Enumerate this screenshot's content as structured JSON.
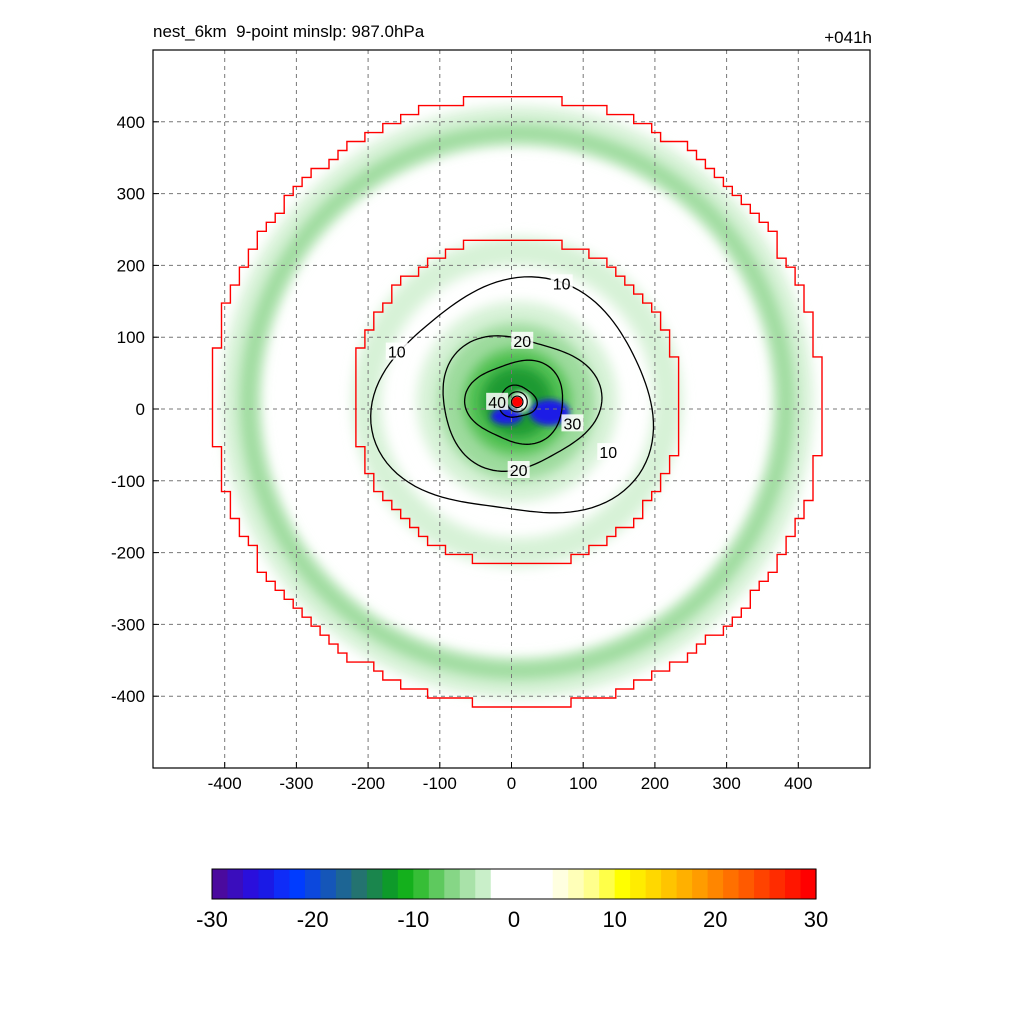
{
  "header": {
    "title_left": "nest_6km  9-point minslp: 987.0hPa",
    "title_right": "+041h"
  },
  "chart_data": {
    "type": "heatmap",
    "title": "nest_6km  9-point minslp: 987.0hPa",
    "valid_time": "+041h",
    "xlabel": "",
    "ylabel": "",
    "xlim": [
      -500,
      500
    ],
    "ylim": [
      -500,
      500
    ],
    "x_ticks": [
      -400,
      -300,
      -200,
      -100,
      0,
      100,
      200,
      300,
      400
    ],
    "y_ticks": [
      -400,
      -300,
      -200,
      -100,
      0,
      100,
      200,
      300,
      400
    ],
    "grid": true,
    "storm_center": [
      8,
      10
    ],
    "fill_colors": {
      "light_green": "#d7f2d7",
      "mid_green": "#9edb9e",
      "green": "#55c255",
      "dark_green": "#1a9a30",
      "blue": "#1a1ae6",
      "red_line": "#ff0000",
      "contour": "#000000",
      "center_marker": "#ff0000"
    },
    "shaded_rings": [
      {
        "radius": 385,
        "width": 55,
        "level": "light"
      },
      {
        "radius": 375,
        "width": 25,
        "level": "mid"
      },
      {
        "radius": 210,
        "width": 40,
        "level": "light"
      }
    ],
    "core_shading": [
      {
        "radius": 140,
        "level": "light"
      },
      {
        "radius": 110,
        "level": "mid"
      },
      {
        "radius": 75,
        "level": "green"
      },
      {
        "radius": 50,
        "level": "dark"
      }
    ],
    "red_boundaries": [
      {
        "name": "outer",
        "radius": 425
      },
      {
        "name": "inner",
        "radius": 230
      }
    ],
    "contours": [
      {
        "level": 10,
        "radius": 185,
        "label": "10"
      },
      {
        "level": 20,
        "radius": 105,
        "label": "20"
      },
      {
        "level": 30,
        "radius": 65,
        "label": "30"
      },
      {
        "level": 40,
        "radius": 25,
        "label": "40"
      }
    ],
    "contour_labels": [
      {
        "text": "10",
        "x": 70,
        "y": 175
      },
      {
        "text": "10",
        "x": -160,
        "y": 80
      },
      {
        "text": "10",
        "x": 135,
        "y": -60
      },
      {
        "text": "20",
        "x": 15,
        "y": 95
      },
      {
        "text": "20",
        "x": 10,
        "y": -85
      },
      {
        "text": "30",
        "x": 85,
        "y": -20
      },
      {
        "text": "40",
        "x": -20,
        "y": 10
      }
    ],
    "colorbar": {
      "min": -30,
      "max": 30,
      "ticks": [
        -30,
        -20,
        -10,
        0,
        10,
        20,
        30
      ],
      "colors": [
        "#4b0a9e",
        "#3a0dbd",
        "#2a0fdc",
        "#1a1ae6",
        "#0f2cf7",
        "#003cff",
        "#0c48dd",
        "#1556b8",
        "#1d6594",
        "#247370",
        "#1a864d",
        "#0e9a2a",
        "#14b01c",
        "#36be36",
        "#5ec95e",
        "#86d686",
        "#a9e2a9",
        "#c9efc9",
        "#ffffff",
        "#ffffff",
        "#ffffff",
        "#ffffff",
        "#ffffe0",
        "#ffffb8",
        "#ffff8c",
        "#ffff48",
        "#ffff00",
        "#ffec00",
        "#ffd800",
        "#ffc400",
        "#ffb000",
        "#ff9c00",
        "#ff8600",
        "#ff7000",
        "#ff5a00",
        "#ff4300",
        "#ff2c00",
        "#ff1600",
        "#ff0000"
      ]
    }
  }
}
